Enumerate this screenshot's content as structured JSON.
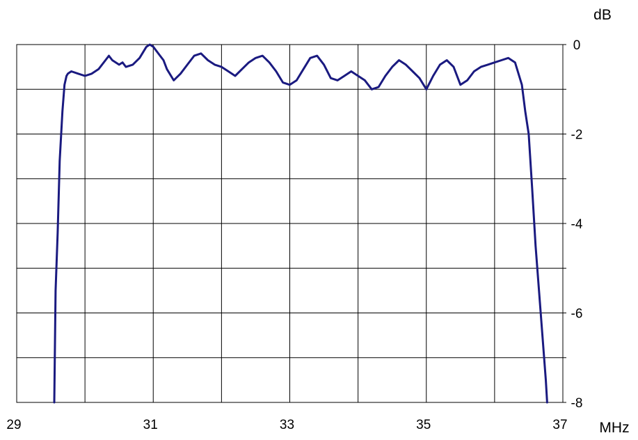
{
  "chart_data": {
    "type": "line",
    "title": "",
    "xlabel": "MHz",
    "ylabel": "dB",
    "xlim": [
      29,
      37
    ],
    "ylim": [
      -8,
      0
    ],
    "x_ticks": [
      29,
      31,
      33,
      35,
      37
    ],
    "x_tick_labels": [
      "29",
      "31",
      "33",
      "35",
      "37"
    ],
    "x_gridlines": [
      29,
      30,
      31,
      32,
      33,
      34,
      35,
      36,
      37
    ],
    "y_ticks": [
      0,
      -2,
      -4,
      -6,
      -8
    ],
    "y_tick_labels": [
      "0",
      "-2",
      "-4",
      "-6",
      "-8"
    ],
    "y_gridlines": [
      0,
      -1,
      -2,
      -3,
      -4,
      -5,
      -6,
      -7,
      -8
    ],
    "grid": true,
    "y_axis_side": "right",
    "line_color": "#1a1a80",
    "series": [
      {
        "x": [
          29.55,
          29.57,
          29.6,
          29.63,
          29.67,
          29.7,
          29.73,
          29.75,
          29.8,
          29.9,
          30.0,
          30.1,
          30.2,
          30.3,
          30.35,
          30.4,
          30.5,
          30.55,
          30.6,
          30.7,
          30.8,
          30.9,
          30.95,
          31.0,
          31.1,
          31.15,
          31.2,
          31.3,
          31.4,
          31.5,
          31.6,
          31.7,
          31.8,
          31.9,
          32.0,
          32.1,
          32.2,
          32.3,
          32.4,
          32.5,
          32.6,
          32.7,
          32.8,
          32.9,
          33.0,
          33.1,
          33.2,
          33.3,
          33.4,
          33.5,
          33.6,
          33.7,
          33.8,
          33.9,
          34.0,
          34.1,
          34.2,
          34.3,
          34.4,
          34.5,
          34.6,
          34.7,
          34.8,
          34.9,
          35.0,
          35.1,
          35.2,
          35.3,
          35.4,
          35.5,
          35.6,
          35.7,
          35.8,
          35.9,
          36.0,
          36.1,
          36.2,
          36.3,
          36.4,
          36.45,
          36.5,
          36.55,
          36.6,
          36.65,
          36.7,
          36.75,
          36.77
        ],
        "y": [
          -8.0,
          -5.5,
          -4.2,
          -2.6,
          -1.5,
          -0.9,
          -0.7,
          -0.65,
          -0.6,
          -0.65,
          -0.7,
          -0.65,
          -0.55,
          -0.35,
          -0.25,
          -0.35,
          -0.45,
          -0.4,
          -0.5,
          -0.45,
          -0.3,
          -0.05,
          0.0,
          -0.05,
          -0.25,
          -0.35,
          -0.55,
          -0.8,
          -0.65,
          -0.45,
          -0.25,
          -0.2,
          -0.35,
          -0.45,
          -0.5,
          -0.6,
          -0.7,
          -0.55,
          -0.4,
          -0.3,
          -0.25,
          -0.4,
          -0.6,
          -0.85,
          -0.9,
          -0.8,
          -0.55,
          -0.3,
          -0.25,
          -0.45,
          -0.75,
          -0.8,
          -0.7,
          -0.6,
          -0.7,
          -0.8,
          -1.0,
          -0.95,
          -0.7,
          -0.5,
          -0.35,
          -0.45,
          -0.6,
          -0.75,
          -1.0,
          -0.7,
          -0.45,
          -0.35,
          -0.5,
          -0.9,
          -0.8,
          -0.6,
          -0.5,
          -0.45,
          -0.4,
          -0.35,
          -0.3,
          -0.4,
          -0.9,
          -1.5,
          -2.0,
          -3.2,
          -4.5,
          -5.5,
          -6.5,
          -7.5,
          -8.0
        ]
      }
    ]
  }
}
